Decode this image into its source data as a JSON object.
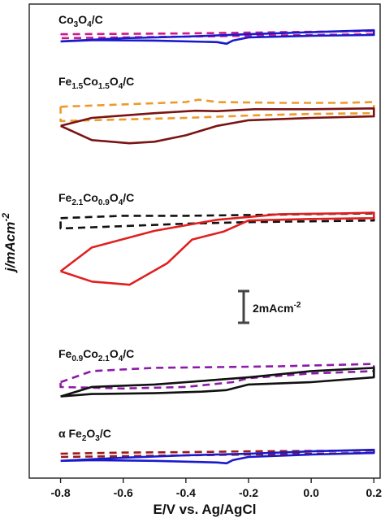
{
  "chart_data": {
    "type": "line",
    "xlabel": "E/V vs. Ag/AgCl",
    "ylabel": "j/mAcm",
    "ylabel_sup": "-2",
    "xlim": [
      -0.9,
      0.22
    ],
    "x_ticks": [
      "-0.8",
      "-0.6",
      "-0.4",
      "-0.2",
      "0.0",
      "0.2"
    ],
    "x_tick_values": [
      -0.8,
      -0.6,
      -0.4,
      -0.2,
      0.0,
      0.2
    ],
    "y_axis_note": "vertically offset stack, no y tick labels",
    "scale_bar": {
      "value": 2,
      "text": "2mAcm",
      "sup": "-2"
    },
    "panels": [
      {
        "label": {
          "parts": [
            [
              "Co",
              ""
            ],
            [
              "3",
              "sub"
            ],
            [
              "O",
              ""
            ],
            [
              "4",
              "sub"
            ],
            [
              "/C",
              ""
            ]
          ]
        }
      },
      {
        "label": {
          "parts": [
            [
              "Fe",
              ""
            ],
            [
              "1.5",
              "sub"
            ],
            [
              "Co",
              ""
            ],
            [
              "1.5",
              "sub"
            ],
            [
              "O",
              ""
            ],
            [
              "4",
              "sub"
            ],
            [
              "/C",
              ""
            ]
          ]
        }
      },
      {
        "label": {
          "parts": [
            [
              "Fe",
              ""
            ],
            [
              "2.1",
              "sub"
            ],
            [
              "Co",
              ""
            ],
            [
              "0.9",
              "sub"
            ],
            [
              "O",
              ""
            ],
            [
              "4",
              "sub"
            ],
            [
              "/C",
              ""
            ]
          ]
        }
      },
      {
        "label": {
          "parts": [
            [
              "Fe",
              ""
            ],
            [
              "0.9",
              "sub"
            ],
            [
              "Co",
              ""
            ],
            [
              "2.1",
              "sub"
            ],
            [
              "O",
              ""
            ],
            [
              "4",
              "sub"
            ],
            [
              "/C",
              ""
            ]
          ]
        }
      },
      {
        "label": {
          "parts": [
            [
              "α Fe",
              ""
            ],
            [
              "2",
              "sub"
            ],
            [
              "O",
              ""
            ],
            [
              "3",
              "sub"
            ],
            [
              "/C",
              ""
            ]
          ]
        }
      }
    ],
    "series": [
      {
        "panel": 0,
        "style": "dashed",
        "color": "#cc1a8c",
        "points": [
          [
            -0.8,
            0.3
          ],
          [
            -0.6,
            0.35
          ],
          [
            -0.4,
            0.4
          ],
          [
            -0.2,
            0.5
          ],
          [
            0.0,
            0.6
          ],
          [
            0.2,
            0.7
          ],
          [
            0.2,
            0.3
          ],
          [
            0.0,
            0.2
          ],
          [
            -0.2,
            0.1
          ],
          [
            -0.4,
            0.0
          ],
          [
            -0.6,
            -0.1
          ],
          [
            -0.8,
            -0.2
          ],
          [
            -0.8,
            0.3
          ]
        ]
      },
      {
        "panel": 0,
        "style": "solid",
        "color": "#1a1acc",
        "points": [
          [
            -0.8,
            -0.6
          ],
          [
            -0.7,
            -0.4
          ],
          [
            -0.6,
            -0.2
          ],
          [
            -0.4,
            0.0
          ],
          [
            -0.2,
            0.3
          ],
          [
            0.0,
            0.55
          ],
          [
            0.2,
            0.8
          ],
          [
            0.2,
            0.2
          ],
          [
            0.0,
            0.1
          ],
          [
            -0.2,
            -0.1
          ],
          [
            -0.25,
            -0.5
          ],
          [
            -0.27,
            -0.9
          ],
          [
            -0.3,
            -0.7
          ],
          [
            -0.5,
            -0.5
          ],
          [
            -0.7,
            -0.45
          ],
          [
            -0.8,
            -0.6
          ]
        ]
      },
      {
        "panel": 1,
        "style": "dashed",
        "color": "#ee9a2a",
        "points": [
          [
            -0.8,
            1.4
          ],
          [
            -0.6,
            1.7
          ],
          [
            -0.4,
            2.0
          ],
          [
            -0.36,
            2.3
          ],
          [
            -0.3,
            2.0
          ],
          [
            -0.1,
            1.9
          ],
          [
            0.1,
            1.9
          ],
          [
            0.2,
            2.0
          ],
          [
            0.2,
            0.6
          ],
          [
            0.0,
            0.5
          ],
          [
            -0.2,
            0.3
          ],
          [
            -0.4,
            0.0
          ],
          [
            -0.6,
            -0.2
          ],
          [
            -0.8,
            -0.4
          ],
          [
            -0.8,
            1.4
          ]
        ]
      },
      {
        "panel": 1,
        "style": "solid",
        "color": "#7a1414",
        "points": [
          [
            -0.8,
            -1.0
          ],
          [
            -0.7,
            0.0
          ],
          [
            -0.5,
            0.6
          ],
          [
            -0.37,
            0.9
          ],
          [
            -0.3,
            0.85
          ],
          [
            -0.18,
            1.1
          ],
          [
            0.0,
            1.1
          ],
          [
            0.2,
            1.2
          ],
          [
            0.2,
            0.2
          ],
          [
            0.0,
            0.0
          ],
          [
            -0.2,
            -0.3
          ],
          [
            -0.3,
            -1.0
          ],
          [
            -0.4,
            -2.2
          ],
          [
            -0.5,
            -3.0
          ],
          [
            -0.58,
            -3.2
          ],
          [
            -0.7,
            -2.8
          ],
          [
            -0.8,
            -1.0
          ]
        ]
      },
      {
        "panel": 2,
        "style": "dashed",
        "color": "#111111",
        "points": [
          [
            -0.8,
            1.2
          ],
          [
            -0.6,
            1.5
          ],
          [
            -0.4,
            1.5
          ],
          [
            -0.2,
            1.6
          ],
          [
            0.0,
            1.7
          ],
          [
            0.2,
            1.8
          ],
          [
            0.2,
            0.9
          ],
          [
            0.0,
            0.8
          ],
          [
            -0.2,
            0.7
          ],
          [
            -0.4,
            0.5
          ],
          [
            -0.6,
            0.2
          ],
          [
            -0.8,
            -0.1
          ],
          [
            -0.8,
            1.2
          ]
        ]
      },
      {
        "panel": 2,
        "style": "solid",
        "color": "#e02020",
        "points": [
          [
            -0.8,
            -5.5
          ],
          [
            -0.7,
            -2.5
          ],
          [
            -0.5,
            -0.4
          ],
          [
            -0.3,
            1.0
          ],
          [
            -0.1,
            1.7
          ],
          [
            0.1,
            1.8
          ],
          [
            0.2,
            1.9
          ],
          [
            0.2,
            1.2
          ],
          [
            0.0,
            1.1
          ],
          [
            -0.2,
            0.9
          ],
          [
            -0.28,
            -0.5
          ],
          [
            -0.38,
            -1.5
          ],
          [
            -0.46,
            -4.5
          ],
          [
            -0.58,
            -7.2
          ],
          [
            -0.7,
            -6.8
          ],
          [
            -0.8,
            -5.5
          ]
        ]
      },
      {
        "panel": 3,
        "style": "dashed",
        "color": "#8c1aa8",
        "points": [
          [
            -0.8,
            0.0
          ],
          [
            -0.7,
            1.4
          ],
          [
            -0.5,
            1.8
          ],
          [
            -0.3,
            1.9
          ],
          [
            -0.1,
            2.0
          ],
          [
            0.1,
            2.2
          ],
          [
            0.2,
            2.3
          ],
          [
            0.2,
            1.4
          ],
          [
            0.0,
            1.1
          ],
          [
            -0.2,
            0.5
          ],
          [
            -0.25,
            0.0
          ],
          [
            -0.4,
            -0.6
          ],
          [
            -0.6,
            -0.8
          ],
          [
            -0.8,
            -0.6
          ],
          [
            -0.8,
            0.0
          ]
        ]
      },
      {
        "panel": 3,
        "style": "solid",
        "color": "#111111",
        "points": [
          [
            -0.8,
            -1.8
          ],
          [
            -0.7,
            -0.6
          ],
          [
            -0.5,
            -0.3
          ],
          [
            -0.3,
            0.3
          ],
          [
            -0.2,
            0.6
          ],
          [
            0.0,
            1.4
          ],
          [
            0.2,
            1.8
          ],
          [
            0.2,
            0.6
          ],
          [
            0.0,
            0.0
          ],
          [
            -0.2,
            -0.3
          ],
          [
            -0.27,
            -1.0
          ],
          [
            -0.35,
            -1.2
          ],
          [
            -0.5,
            -1.4
          ],
          [
            -0.7,
            -1.5
          ],
          [
            -0.8,
            -1.8
          ]
        ]
      },
      {
        "panel": 4,
        "style": "dashed",
        "color": "#9c1a1a",
        "points": [
          [
            -0.8,
            0.2
          ],
          [
            -0.6,
            0.35
          ],
          [
            -0.4,
            0.4
          ],
          [
            -0.2,
            0.5
          ],
          [
            0.0,
            0.55
          ],
          [
            0.2,
            0.6
          ],
          [
            0.2,
            0.3
          ],
          [
            0.0,
            0.2
          ],
          [
            -0.2,
            0.1
          ],
          [
            -0.4,
            0.0
          ],
          [
            -0.6,
            -0.1
          ],
          [
            -0.8,
            -0.2
          ],
          [
            -0.8,
            0.2
          ]
        ]
      },
      {
        "panel": 4,
        "style": "solid",
        "color": "#1a1acc",
        "points": [
          [
            -0.8,
            -0.7
          ],
          [
            -0.6,
            -0.3
          ],
          [
            -0.4,
            0.0
          ],
          [
            -0.2,
            0.2
          ],
          [
            0.0,
            0.5
          ],
          [
            0.2,
            0.7
          ],
          [
            0.2,
            0.3
          ],
          [
            0.0,
            0.1
          ],
          [
            -0.2,
            -0.2
          ],
          [
            -0.25,
            -0.6
          ],
          [
            -0.27,
            -1.0
          ],
          [
            -0.3,
            -0.9
          ],
          [
            -0.5,
            -0.7
          ],
          [
            -0.7,
            -0.6
          ],
          [
            -0.8,
            -0.7
          ]
        ]
      }
    ]
  }
}
